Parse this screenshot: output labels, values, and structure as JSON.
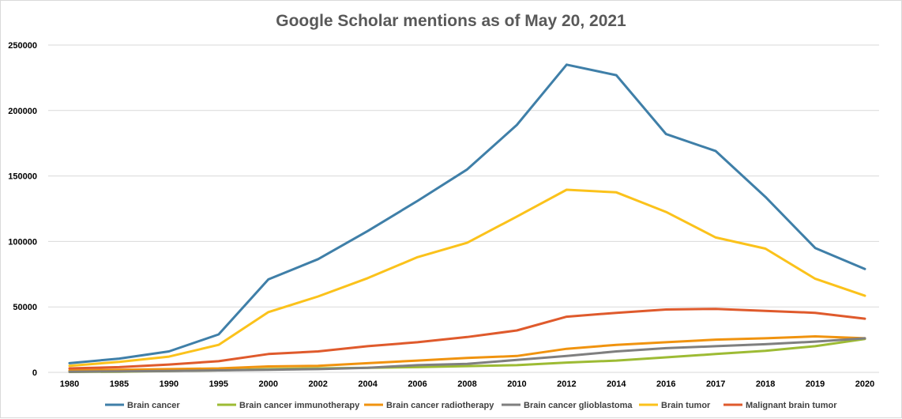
{
  "chart_data": {
    "type": "line",
    "title": "Google Scholar mentions as of May 20, 2021",
    "xlabel": "",
    "ylabel": "",
    "ylim": [
      0,
      250000
    ],
    "yticks": [
      0,
      50000,
      100000,
      150000,
      200000,
      250000
    ],
    "ytick_labels": [
      "0",
      "50000",
      "100000",
      "150000",
      "200000",
      "250000"
    ],
    "grid": true,
    "legend_position": "bottom",
    "categories": [
      "1980",
      "1985",
      "1990",
      "1995",
      "2000",
      "2002",
      "2004",
      "2006",
      "2008",
      "2010",
      "2012",
      "2014",
      "2016",
      "2017",
      "2018",
      "2019",
      "2020"
    ],
    "series": [
      {
        "name": "Brain cancer",
        "color": "#3f7fa8",
        "values": [
          7000,
          10500,
          16000,
          29000,
          71000,
          86500,
          108000,
          131000,
          155000,
          189000,
          235000,
          227000,
          182000,
          169000,
          134000,
          95000,
          79000
        ]
      },
      {
        "name": "Brain cancer immunotherapy",
        "color": "#9dbb34",
        "values": [
          300,
          500,
          1000,
          1500,
          2500,
          3000,
          3500,
          4000,
          4800,
          5500,
          7500,
          9000,
          11500,
          14000,
          16500,
          20000,
          25500
        ]
      },
      {
        "name": "Brain cancer radiotherapy",
        "color": "#f0930f",
        "values": [
          1500,
          2000,
          2500,
          3000,
          4500,
          5000,
          7000,
          9000,
          11000,
          12500,
          18000,
          21000,
          23000,
          25000,
          26000,
          27500,
          26000
        ]
      },
      {
        "name": "Brain cancer glioblastoma",
        "color": "#7f7f7f",
        "values": [
          500,
          800,
          1000,
          1500,
          2000,
          2500,
          3500,
          5500,
          6500,
          9500,
          12500,
          16000,
          18500,
          20000,
          21500,
          23500,
          26000
        ]
      },
      {
        "name": "Brain tumor",
        "color": "#fbc21b",
        "values": [
          5000,
          8000,
          12000,
          21000,
          46000,
          58000,
          72000,
          88000,
          99000,
          119000,
          139500,
          137500,
          122500,
          103000,
          94500,
          71500,
          58500
        ]
      },
      {
        "name": "Malignant brain tumor",
        "color": "#df5a2c",
        "values": [
          3000,
          4000,
          6000,
          8500,
          14000,
          16000,
          20000,
          23000,
          27000,
          32000,
          42500,
          45500,
          48000,
          48500,
          47000,
          45500,
          41000
        ]
      }
    ]
  }
}
